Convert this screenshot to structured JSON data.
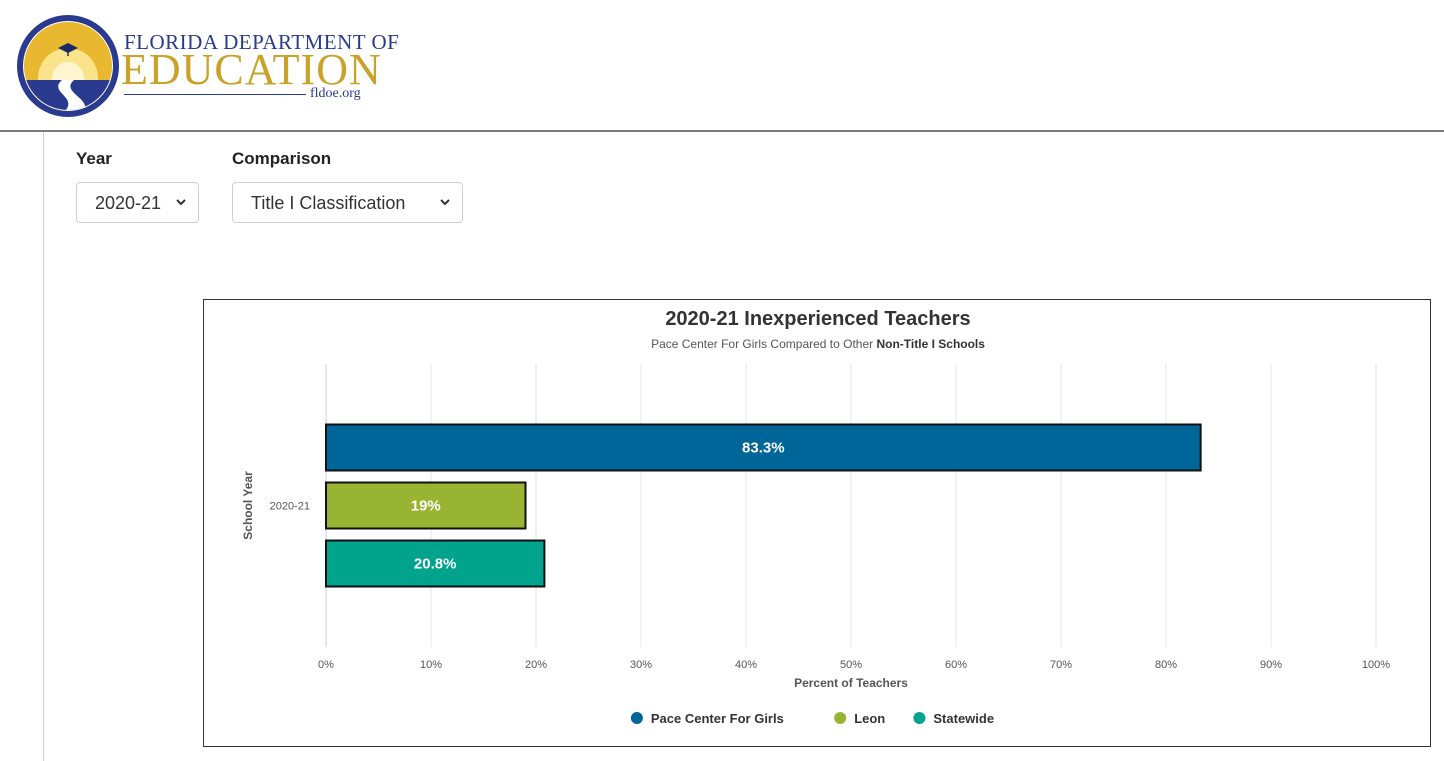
{
  "header": {
    "logo_line1": "FLORIDA DEPARTMENT OF",
    "logo_line2": "EDUCATION",
    "logo_url": "fldoe.org"
  },
  "filters": {
    "year_label": "Year",
    "year_value": "2020-21",
    "comparison_label": "Comparison",
    "comparison_value": "Title I Classification"
  },
  "colors": {
    "pace": "#006699",
    "leon": "#99b433",
    "statewide": "#00a38c"
  },
  "icons": {
    "logo": "fldoe-seal-icon",
    "dropdown": "chevron-down-icon",
    "legend_marker": "circle-marker-icon"
  },
  "chart_data": {
    "type": "bar",
    "orientation": "horizontal",
    "title": "2020-21 Inexperienced Teachers",
    "subtitle_prefix": "Pace Center For Girls Compared to Other ",
    "subtitle_emphasis": "Non-Title I Schools",
    "categories": [
      "2020-21"
    ],
    "series": [
      {
        "name": "Pace Center For Girls",
        "values": [
          83.3
        ],
        "label": "83.3%",
        "color": "#006699"
      },
      {
        "name": "Leon",
        "values": [
          19
        ],
        "label": "19%",
        "color": "#99b433"
      },
      {
        "name": "Statewide",
        "values": [
          20.8
        ],
        "label": "20.8%",
        "color": "#00a38c"
      }
    ],
    "xlabel": "Percent of Teachers",
    "ylabel": "School Year",
    "xlim": [
      0,
      100
    ],
    "xticks": [
      "0%",
      "10%",
      "20%",
      "30%",
      "40%",
      "50%",
      "60%",
      "70%",
      "80%",
      "90%",
      "100%"
    ],
    "grid": true,
    "legend": "bottom"
  }
}
